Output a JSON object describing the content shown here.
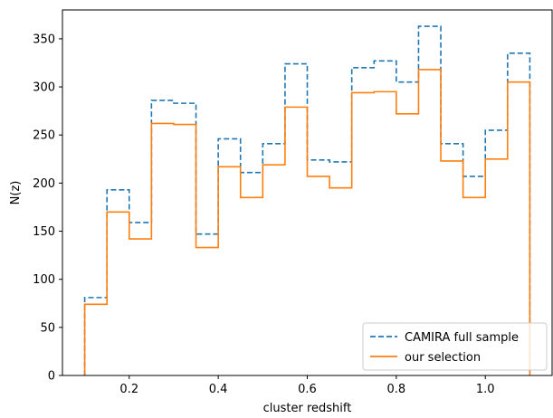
{
  "chart_data": {
    "type": "histogram",
    "xlabel": "cluster redshift",
    "ylabel": "N(z)",
    "xlim": [
      0.05,
      1.15
    ],
    "ylim": [
      0,
      380
    ],
    "xticks": [
      0.2,
      0.4,
      0.6,
      0.8,
      1.0
    ],
    "xtick_labels": [
      "0.2",
      "0.4",
      "0.6",
      "0.8",
      "1.0"
    ],
    "yticks": [
      0,
      50,
      100,
      150,
      200,
      250,
      300,
      350
    ],
    "ytick_labels": [
      "0",
      "50",
      "100",
      "150",
      "200",
      "250",
      "300",
      "350"
    ],
    "bin_edges": [
      0.1,
      0.15,
      0.2,
      0.25,
      0.3,
      0.35,
      0.4,
      0.45,
      0.5,
      0.55,
      0.6,
      0.65,
      0.7,
      0.75,
      0.8,
      0.85,
      0.9,
      0.95,
      1.0,
      1.05,
      1.1
    ],
    "series": [
      {
        "name": "CAMIRA full sample",
        "color": "#1f77b4",
        "linestyle": "dashed",
        "values": [
          81,
          193,
          159,
          286,
          283,
          147,
          246,
          211,
          241,
          324,
          224,
          222,
          320,
          327,
          305,
          363,
          241,
          207,
          255,
          335
        ]
      },
      {
        "name": "our selection",
        "color": "#ff7f0e",
        "linestyle": "solid",
        "values": [
          74,
          170,
          142,
          262,
          261,
          133,
          217,
          185,
          219,
          279,
          207,
          195,
          294,
          295,
          272,
          318,
          223,
          185,
          225,
          305
        ]
      }
    ],
    "legend": {
      "position": "lower-right"
    },
    "grid": false
  }
}
